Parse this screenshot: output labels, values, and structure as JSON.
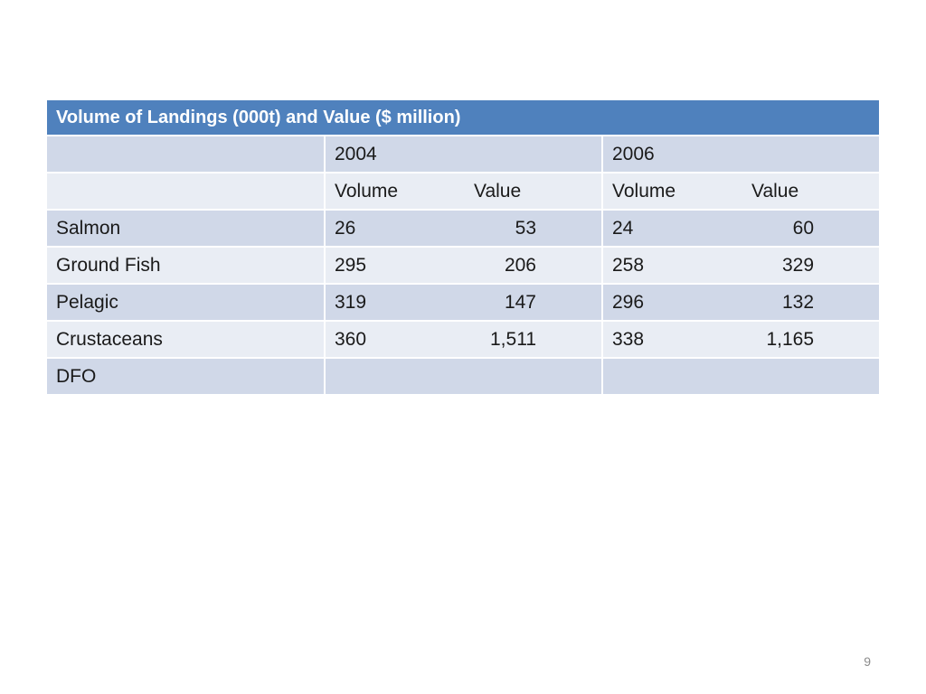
{
  "table": {
    "title": "Volume of Landings (000t) and Value ($ million)",
    "years": [
      "2004",
      "2006"
    ],
    "subheaders": {
      "volume": "Volume",
      "value": "Value"
    },
    "rows": [
      {
        "label": "Salmon",
        "y2004": {
          "volume": "26",
          "value": "53"
        },
        "y2006": {
          "volume": "24",
          "value": "60"
        }
      },
      {
        "label": "Ground Fish",
        "y2004": {
          "volume": "295",
          "value": "206"
        },
        "y2006": {
          "volume": "258",
          "value": "329"
        }
      },
      {
        "label": "Pelagic",
        "y2004": {
          "volume": "319",
          "value": "147"
        },
        "y2006": {
          "volume": "296",
          "value": "132"
        }
      },
      {
        "label": "Crustaceans",
        "y2004": {
          "volume": "360",
          "value": "1,511"
        },
        "y2006": {
          "volume": "338",
          "value": "1,165"
        }
      },
      {
        "label": "DFO",
        "y2004": {
          "volume": "",
          "value": ""
        },
        "y2006": {
          "volume": "",
          "value": ""
        }
      }
    ]
  },
  "colors": {
    "header": "#4f81bd",
    "band_dark": "#d0d8e8",
    "band_light": "#e9edf4"
  },
  "page_number": "9"
}
